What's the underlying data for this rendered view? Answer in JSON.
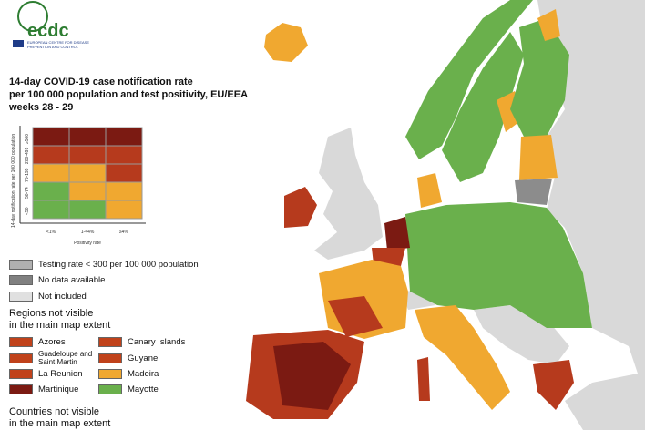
{
  "header": {
    "logo": "ecdc",
    "agency": "EUROPEAN CENTRE FOR DISEASE PREVENTION AND CONTROL"
  },
  "title": {
    "lines": [
      "14-day COVID-19 case notification rate",
      "per 100 000 population and test positivity, EU/EEA",
      "weeks 28 - 29"
    ]
  },
  "matrix": {
    "y_label": "14-day notification rate per 100 000 population",
    "y_ticks": [
      "≥500",
      "200-499",
      "75-199",
      "50-74",
      "<50"
    ],
    "x_label": "Positivity rate",
    "x_ticks": [
      "<1%",
      "1-<4%",
      "≥4%"
    ]
  },
  "legend": {
    "items": [
      "Testing rate < 300 per 100 000 population",
      "No data available",
      "Not included"
    ]
  },
  "regions": {
    "heading": [
      "Regions not visible",
      "in the main map extent"
    ],
    "items": [
      "Azores",
      "Canary Islands",
      "Guadeloupe and Saint Martin",
      "Guyane",
      "La Reunion",
      "Madeira",
      "Martinique",
      "Mayotte"
    ]
  },
  "countries": {
    "heading": [
      "Countries not visible",
      "in the main map extent"
    ]
  }
}
